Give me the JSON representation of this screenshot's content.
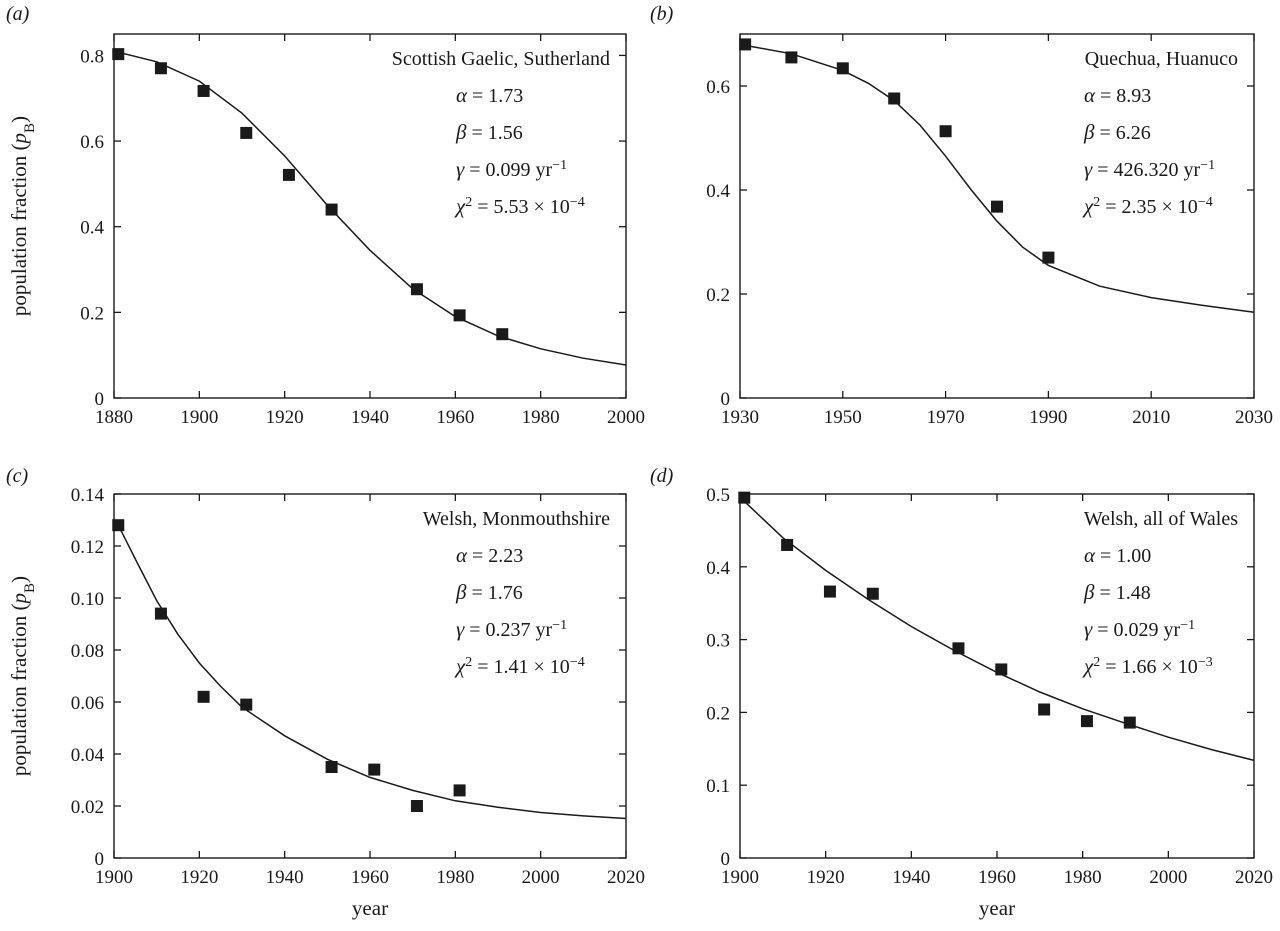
{
  "chart_data": [
    {
      "panel_label": "(a)",
      "type": "scatter",
      "title": "Scottish Gaelic, Sutherland",
      "xlabel": "",
      "ylabel": "population fraction (p_B)",
      "xlim": [
        1880,
        2000
      ],
      "ylim": [
        0,
        0.85
      ],
      "xticks": [
        1880,
        1900,
        1920,
        1940,
        1960,
        1980,
        2000
      ],
      "yticks": [
        0,
        0.2,
        0.4,
        0.6,
        0.8
      ],
      "yticklabels": [
        "0",
        "0.2",
        "0.4",
        "0.6",
        "0.8"
      ],
      "params": [
        "α = 1.73",
        "β = 1.56",
        "γ = 0.099 yr⁻¹",
        "χ² = 5.53 × 10⁻⁴"
      ],
      "points": {
        "x": [
          1881,
          1891,
          1901,
          1911,
          1921,
          1931,
          1951,
          1961,
          1971
        ],
        "y": [
          0.803,
          0.77,
          0.717,
          0.619,
          0.521,
          0.44,
          0.254,
          0.193,
          0.149
        ]
      },
      "fit": {
        "x": [
          1880,
          1890,
          1900,
          1910,
          1920,
          1930,
          1940,
          1950,
          1960,
          1970,
          1980,
          1990,
          2000
        ],
        "y": [
          0.81,
          0.785,
          0.74,
          0.665,
          0.565,
          0.45,
          0.345,
          0.255,
          0.19,
          0.145,
          0.115,
          0.093,
          0.077
        ]
      },
      "grid": false
    },
    {
      "panel_label": "(b)",
      "type": "scatter",
      "title": "Quechua, Huanuco",
      "xlabel": "",
      "ylabel": "",
      "xlim": [
        1930,
        2030
      ],
      "ylim": [
        0,
        0.7
      ],
      "xticks": [
        1930,
        1950,
        1970,
        1990,
        2010,
        2030
      ],
      "yticks": [
        0,
        0.2,
        0.4,
        0.6
      ],
      "yticklabels": [
        "0",
        "0.2",
        "0.4",
        "0.6"
      ],
      "params": [
        "α = 8.93",
        "β = 6.26",
        "γ = 426.320 yr⁻¹",
        "χ² = 2.35 × 10⁻⁴"
      ],
      "points": {
        "x": [
          1931,
          1940,
          1950,
          1960,
          1970,
          1980,
          1990
        ],
        "y": [
          0.68,
          0.655,
          0.634,
          0.576,
          0.513,
          0.368,
          0.27
        ]
      },
      "fit": {
        "x": [
          1930,
          1940,
          1950,
          1955,
          1960,
          1965,
          1970,
          1975,
          1980,
          1985,
          1990,
          2000,
          2010,
          2020,
          2030
        ],
        "y": [
          0.68,
          0.662,
          0.63,
          0.605,
          0.572,
          0.525,
          0.465,
          0.4,
          0.34,
          0.29,
          0.255,
          0.215,
          0.193,
          0.178,
          0.165
        ]
      },
      "grid": false
    },
    {
      "panel_label": "(c)",
      "type": "scatter",
      "title": "Welsh, Monmouthshire",
      "xlabel": "year",
      "ylabel": "population fraction (p_B)",
      "xlim": [
        1900,
        2020
      ],
      "ylim": [
        0,
        0.14
      ],
      "xticks": [
        1900,
        1920,
        1940,
        1960,
        1980,
        2000,
        2020
      ],
      "yticks": [
        0,
        0.02,
        0.04,
        0.06,
        0.08,
        0.1,
        0.12,
        0.14
      ],
      "yticklabels": [
        "0",
        "0.02",
        "0.04",
        "0.06",
        "0.08",
        "0.10",
        "0.12",
        "0.14"
      ],
      "params": [
        "α = 2.23",
        "β = 1.76",
        "γ = 0.237 yr⁻¹",
        "χ² = 1.41 × 10⁻⁴"
      ],
      "points": {
        "x": [
          1901,
          1911,
          1921,
          1931,
          1951,
          1961,
          1971,
          1981
        ],
        "y": [
          0.128,
          0.094,
          0.062,
          0.059,
          0.035,
          0.034,
          0.02,
          0.026
        ]
      },
      "fit": {
        "x": [
          1901,
          1905,
          1910,
          1915,
          1920,
          1925,
          1930,
          1940,
          1950,
          1960,
          1970,
          1980,
          1990,
          2000,
          2010,
          2020
        ],
        "y": [
          0.128,
          0.115,
          0.099,
          0.086,
          0.075,
          0.066,
          0.058,
          0.047,
          0.038,
          0.031,
          0.026,
          0.022,
          0.0195,
          0.0175,
          0.0162,
          0.0152
        ]
      },
      "grid": false
    },
    {
      "panel_label": "(d)",
      "type": "scatter",
      "title": "Welsh, all of Wales",
      "xlabel": "year",
      "ylabel": "",
      "xlim": [
        1900,
        2020
      ],
      "ylim": [
        0,
        0.5
      ],
      "xticks": [
        1900,
        1920,
        1940,
        1960,
        1980,
        2000,
        2020
      ],
      "yticks": [
        0,
        0.1,
        0.2,
        0.3,
        0.4,
        0.5
      ],
      "yticklabels": [
        "0",
        "0.1",
        "0.2",
        "0.3",
        "0.4",
        "0.5"
      ],
      "params": [
        "α = 1.00",
        "β = 1.48",
        "γ = 0.029 yr⁻¹",
        "χ² = 1.66 × 10⁻³"
      ],
      "points": {
        "x": [
          1901,
          1911,
          1921,
          1931,
          1951,
          1961,
          1971,
          1981,
          1991
        ],
        "y": [
          0.495,
          0.43,
          0.366,
          0.363,
          0.288,
          0.259,
          0.204,
          0.188,
          0.186
        ]
      },
      "fit": {
        "x": [
          1901,
          1910,
          1920,
          1930,
          1940,
          1950,
          1960,
          1970,
          1980,
          1990,
          2000,
          2010,
          2020
        ],
        "y": [
          0.49,
          0.44,
          0.395,
          0.355,
          0.318,
          0.285,
          0.255,
          0.228,
          0.205,
          0.185,
          0.166,
          0.149,
          0.134
        ]
      },
      "grid": false
    }
  ]
}
